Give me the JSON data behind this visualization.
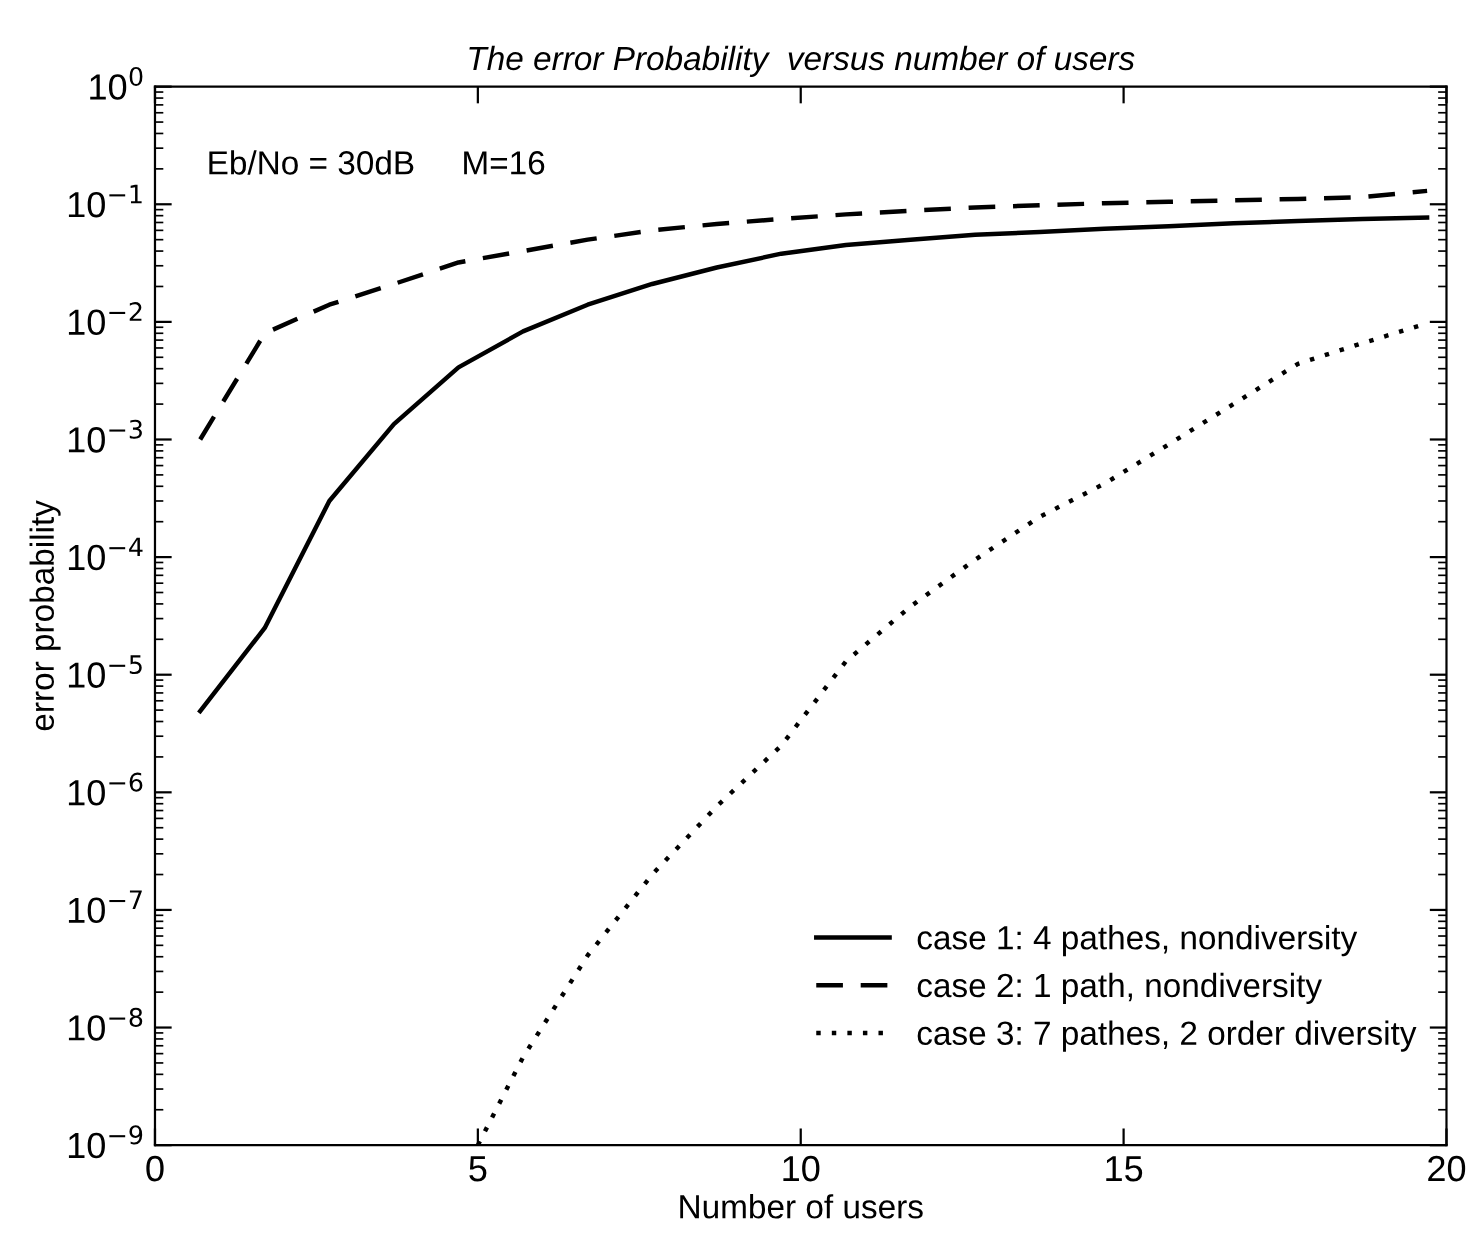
{
  "chart_data": {
    "type": "line",
    "title": "The error Probability  versus number of users",
    "xlabel": "Number of users",
    "ylabel": "error probability",
    "annotations": [
      "Eb/No = 30dB     M=16"
    ],
    "log": "y",
    "xlim": [
      0,
      20
    ],
    "xticks": [
      0,
      5,
      10,
      15,
      20
    ],
    "ylim": [
      1e-09,
      1
    ],
    "yticks": [
      {
        "value": 1e-09,
        "label": "10$^{−9}$"
      },
      {
        "value": 1e-08,
        "label": "10$^{−8}$"
      },
      {
        "value": 1e-07,
        "label": "10$^{−7}$"
      },
      {
        "value": 1e-06,
        "label": "10$^{−6}$"
      },
      {
        "value": 1e-05,
        "label": "10$^{−5}$"
      },
      {
        "value": 0.0001,
        "label": "10$^{−4}$"
      },
      {
        "value": 0.001,
        "label": "10$^{−3}$"
      },
      {
        "value": 0.01,
        "label": "10$^{−2}$"
      },
      {
        "value": 0.1,
        "label": "10$^{−1}$"
      },
      {
        "value": 1,
        "label": "10$^{0}$"
      }
    ],
    "legend": "bottom right",
    "grid": false,
    "marker": "none",
    "series": [
      {
        "name": "case 1: 4 pathes, nondiversity",
        "color": "#000000",
        "line_style": "solid",
        "x": [
          0.7,
          1.7,
          2.7,
          3.7,
          4.7,
          5.7,
          6.7,
          7.7,
          8.7,
          9.7,
          10.7,
          11.7,
          12.7,
          13.7,
          14.7,
          15.7,
          16.7,
          17.7,
          18.7,
          19.7
        ],
        "values": [
          4.9e-06,
          2.5e-05,
          0.0003,
          0.00135,
          0.0041,
          0.0083,
          0.014,
          0.021,
          0.029,
          0.038,
          0.045,
          0.05,
          0.055,
          0.058,
          0.062,
          0.065,
          0.069,
          0.072,
          0.075,
          0.077
        ]
      },
      {
        "name": "case 2: 1 path, nondiversity",
        "color": "#000000",
        "line_style": "dashed",
        "x": [
          0.7,
          1.7,
          2.7,
          3.7,
          4.7,
          5.7,
          6.7,
          7.7,
          8.7,
          9.7,
          10.7,
          11.7,
          12.7,
          13.7,
          14.7,
          15.7,
          16.7,
          17.7,
          18.7,
          19.7
        ],
        "values": [
          0.001,
          0.008,
          0.014,
          0.021,
          0.032,
          0.04,
          0.05,
          0.06,
          0.068,
          0.075,
          0.082,
          0.088,
          0.094,
          0.098,
          0.102,
          0.105,
          0.108,
          0.111,
          0.115,
          0.13
        ]
      },
      {
        "name": "case 3: 7 pathes, 2 order diversity",
        "color": "#000000",
        "line_style": "dotted",
        "x": [
          5.0,
          5.7,
          6.7,
          7.7,
          8.7,
          9.7,
          10.7,
          11.7,
          12.7,
          13.7,
          14.7,
          15.7,
          16.7,
          17.7,
          18.7,
          19.7
        ],
        "values": [
          1e-09,
          5.6e-09,
          4.1e-08,
          2e-07,
          7.6e-07,
          2.5e-06,
          1.3e-05,
          3.8e-05,
          9.5e-05,
          0.00022,
          0.00042,
          0.00091,
          0.002,
          0.0044,
          0.0066,
          0.0097
        ]
      }
    ]
  }
}
